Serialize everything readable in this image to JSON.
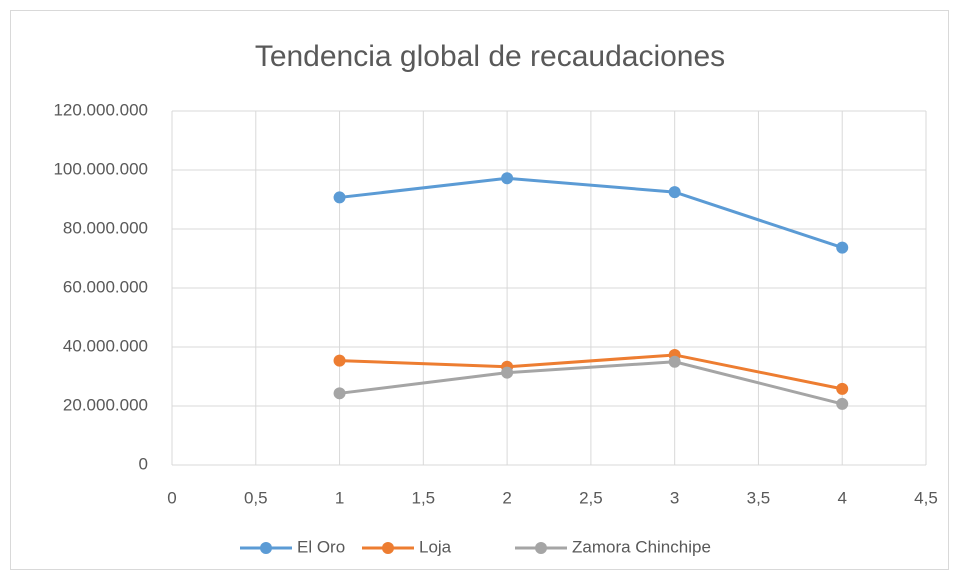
{
  "chart_data": {
    "type": "scatter-line",
    "title": "Tendencia global de recaudaciones",
    "x": [
      1,
      2,
      3,
      4
    ],
    "series": [
      {
        "name": "El Oro",
        "color": "#5b9bd5",
        "values": [
          90700000,
          97200000,
          92500000,
          73700000
        ]
      },
      {
        "name": "Loja",
        "color": "#ed7d31",
        "values": [
          35400000,
          33300000,
          37300000,
          25800000
        ]
      },
      {
        "name": "Zamora Chinchipe",
        "color": "#a5a5a5",
        "values": [
          24300000,
          31300000,
          35000000,
          20700000
        ]
      }
    ],
    "xlim": [
      0,
      4.5
    ],
    "xticks": [
      0,
      {
        "value": 0.5,
        "label": "0,5"
      },
      1,
      {
        "value": 1.5,
        "label": "1,5"
      },
      2,
      {
        "value": 2.5,
        "label": "2,5"
      },
      3,
      {
        "value": 3.5,
        "label": "3,5"
      },
      4,
      {
        "value": 4.5,
        "label": "4,5"
      }
    ],
    "ylim": [
      0,
      120000000
    ],
    "yticks": [
      0,
      {
        "value": 20000000,
        "label": "20.000.000"
      },
      {
        "value": 40000000,
        "label": "40.000.000"
      },
      {
        "value": 60000000,
        "label": "60.000.000"
      },
      {
        "value": 80000000,
        "label": "80.000.000"
      },
      {
        "value": 100000000,
        "label": "100.000.000"
      },
      {
        "value": 120000000,
        "label": "120.000.000"
      }
    ],
    "grid": true,
    "legend": "bottom"
  }
}
